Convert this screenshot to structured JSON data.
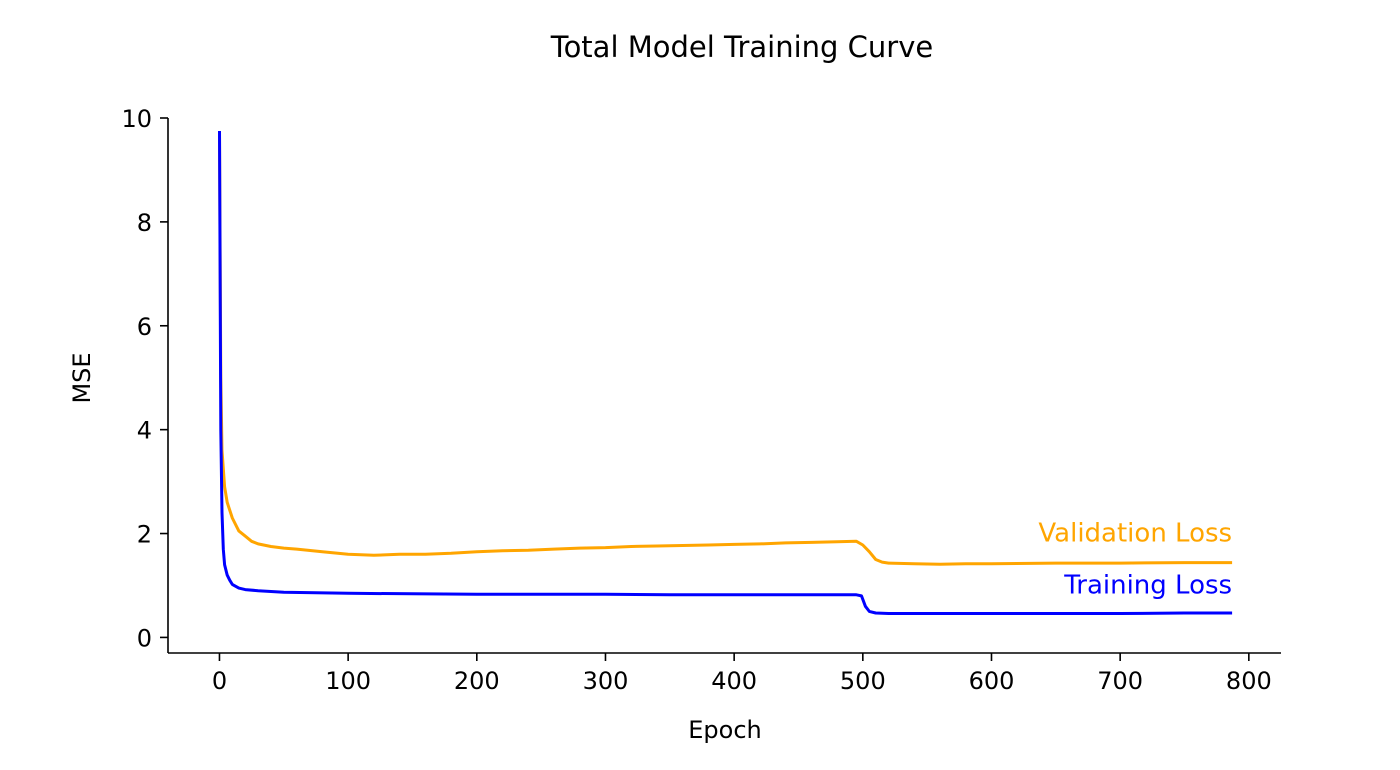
{
  "chart_data": {
    "type": "line",
    "title": "Total Model Training Curve",
    "xlabel": "Epoch",
    "ylabel": "MSE",
    "xlim": [
      -40,
      825
    ],
    "ylim": [
      -0.3,
      10
    ],
    "xticks": [
      0,
      100,
      200,
      300,
      400,
      500,
      600,
      700,
      800
    ],
    "yticks": [
      0,
      2,
      4,
      6,
      8,
      10
    ],
    "grid": false,
    "legend": "inline labels at right end of each line",
    "series": [
      {
        "name": "Validation Loss",
        "color": "#FFA500",
        "label_anchor": [
          787,
          1.85
        ],
        "points": [
          [
            0,
            9.7
          ],
          [
            1,
            5.0
          ],
          [
            2,
            3.6
          ],
          [
            4,
            2.9
          ],
          [
            6,
            2.6
          ],
          [
            10,
            2.3
          ],
          [
            15,
            2.05
          ],
          [
            20,
            1.95
          ],
          [
            25,
            1.85
          ],
          [
            30,
            1.8
          ],
          [
            40,
            1.75
          ],
          [
            50,
            1.72
          ],
          [
            60,
            1.7
          ],
          [
            80,
            1.65
          ],
          [
            100,
            1.6
          ],
          [
            120,
            1.58
          ],
          [
            140,
            1.6
          ],
          [
            160,
            1.6
          ],
          [
            180,
            1.62
          ],
          [
            200,
            1.65
          ],
          [
            220,
            1.67
          ],
          [
            240,
            1.68
          ],
          [
            260,
            1.7
          ],
          [
            280,
            1.72
          ],
          [
            300,
            1.73
          ],
          [
            320,
            1.75
          ],
          [
            340,
            1.76
          ],
          [
            360,
            1.77
          ],
          [
            380,
            1.78
          ],
          [
            400,
            1.79
          ],
          [
            420,
            1.8
          ],
          [
            440,
            1.82
          ],
          [
            460,
            1.83
          ],
          [
            480,
            1.84
          ],
          [
            495,
            1.85
          ],
          [
            500,
            1.78
          ],
          [
            505,
            1.65
          ],
          [
            510,
            1.5
          ],
          [
            515,
            1.45
          ],
          [
            520,
            1.43
          ],
          [
            540,
            1.42
          ],
          [
            560,
            1.41
          ],
          [
            580,
            1.42
          ],
          [
            600,
            1.42
          ],
          [
            650,
            1.43
          ],
          [
            700,
            1.43
          ],
          [
            750,
            1.44
          ],
          [
            787,
            1.44
          ]
        ]
      },
      {
        "name": "Training Loss",
        "color": "#0000FF",
        "label_anchor": [
          787,
          0.85
        ],
        "points": [
          [
            0,
            9.75
          ],
          [
            1,
            4.0
          ],
          [
            2,
            2.4
          ],
          [
            3,
            1.7
          ],
          [
            4,
            1.4
          ],
          [
            6,
            1.2
          ],
          [
            8,
            1.1
          ],
          [
            10,
            1.02
          ],
          [
            15,
            0.95
          ],
          [
            20,
            0.92
          ],
          [
            30,
            0.9
          ],
          [
            50,
            0.87
          ],
          [
            100,
            0.85
          ],
          [
            150,
            0.84
          ],
          [
            200,
            0.83
          ],
          [
            250,
            0.83
          ],
          [
            300,
            0.83
          ],
          [
            350,
            0.82
          ],
          [
            400,
            0.82
          ],
          [
            450,
            0.82
          ],
          [
            495,
            0.82
          ],
          [
            499,
            0.8
          ],
          [
            502,
            0.6
          ],
          [
            505,
            0.5
          ],
          [
            510,
            0.47
          ],
          [
            520,
            0.46
          ],
          [
            550,
            0.46
          ],
          [
            600,
            0.46
          ],
          [
            650,
            0.46
          ],
          [
            700,
            0.46
          ],
          [
            750,
            0.47
          ],
          [
            787,
            0.47
          ]
        ]
      }
    ]
  }
}
